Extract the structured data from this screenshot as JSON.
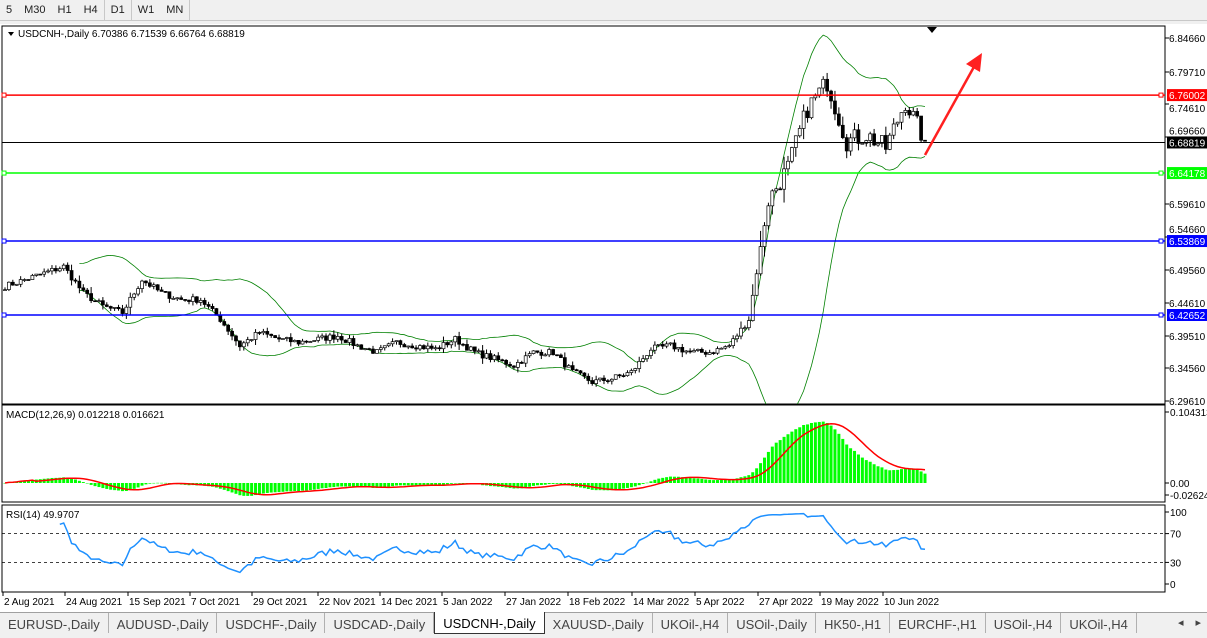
{
  "toolbar": {
    "timeframes": [
      "5",
      "M30",
      "H1",
      "H4",
      "D1",
      "W1",
      "MN"
    ],
    "active": "D1"
  },
  "chart": {
    "header": "USDCNH-,Daily  6.70386 6.71539 6.66764 6.68819",
    "symbol": "USDCNH-",
    "period": "Daily",
    "open": 6.70386,
    "high": 6.71539,
    "low": 6.66764,
    "close": 6.68819,
    "price_ticks": [
      "6.84660",
      "6.79710",
      "6.74610",
      "6.69660",
      "6.59610",
      "6.54660",
      "6.49560",
      "6.44610",
      "6.39510",
      "6.34560",
      "6.29610"
    ],
    "price_range": [
      6.2961,
      6.8466
    ],
    "levels": [
      {
        "price": 6.76002,
        "label": "6.76002",
        "color": "#ff0000"
      },
      {
        "price": 6.68819,
        "label": "6.68819",
        "color": "#000000"
      },
      {
        "price": 6.64178,
        "label": "6.64178",
        "color": "#00ff00"
      },
      {
        "price": 6.53869,
        "label": "6.53869",
        "color": "#0000ff"
      },
      {
        "price": 6.42652,
        "label": "6.42652",
        "color": "#0000ff"
      }
    ],
    "date_ticks": [
      "2 Aug 2021",
      "24 Aug 2021",
      "15 Sep 2021",
      "7 Oct 2021",
      "29 Oct 2021",
      "22 Nov 2021",
      "14 Dec 2021",
      "5 Jan 2022",
      "27 Jan 2022",
      "18 Feb 2022",
      "14 Mar 2022",
      "5 Apr 2022",
      "27 Apr 2022",
      "19 May 2022",
      "10 Jun 2022"
    ],
    "weekly_closes": [
      6.47,
      6.48,
      6.49,
      6.5,
      6.46,
      6.44,
      6.43,
      6.48,
      6.46,
      6.45,
      6.45,
      6.42,
      6.38,
      6.4,
      6.39,
      6.385,
      6.39,
      6.395,
      6.38,
      6.37,
      6.385,
      6.38,
      6.375,
      6.39,
      6.37,
      6.36,
      6.35,
      6.37,
      6.37,
      6.34,
      6.325,
      6.33,
      6.34,
      6.375,
      6.38,
      6.37,
      6.37,
      6.38,
      6.42,
      6.6,
      6.65,
      6.74,
      6.78,
      6.69,
      6.7,
      6.68,
      6.75,
      6.69
    ],
    "bullish_color": "#000000",
    "bearish_color": "#000000",
    "bands_color": "#008000",
    "annotation_arrow_color": "#ff2020"
  },
  "macd": {
    "label": "MACD(12,26,9) 0.012218 0.016621",
    "ticks": [
      "0.104313",
      "0.00",
      "-0.026249"
    ],
    "range": [
      -0.026249,
      0.104313
    ],
    "hist_color": "#00ff00",
    "signal_color": "#ff0000"
  },
  "rsi": {
    "label": "RSI(14) 49.9707",
    "ticks": [
      "100",
      "70",
      "30",
      "0"
    ],
    "levels": [
      70,
      30
    ],
    "line_color": "#1e90ff"
  },
  "tabs": [
    "EURUSD-,Daily",
    "AUDUSD-,Daily",
    "USDCHF-,Daily",
    "USDCAD-,Daily",
    "USDCNH-,Daily",
    "XAUUSD-,Daily",
    "UKOil-,H4",
    "USOil-,Daily",
    "HK50-,H1",
    "EURCHF-,H1",
    "USOil-,H4",
    "UKOil-,H4"
  ],
  "active_tab": "USDCNH-,Daily",
  "tab_scroll": {
    "left": "◂",
    "right": "▸"
  }
}
